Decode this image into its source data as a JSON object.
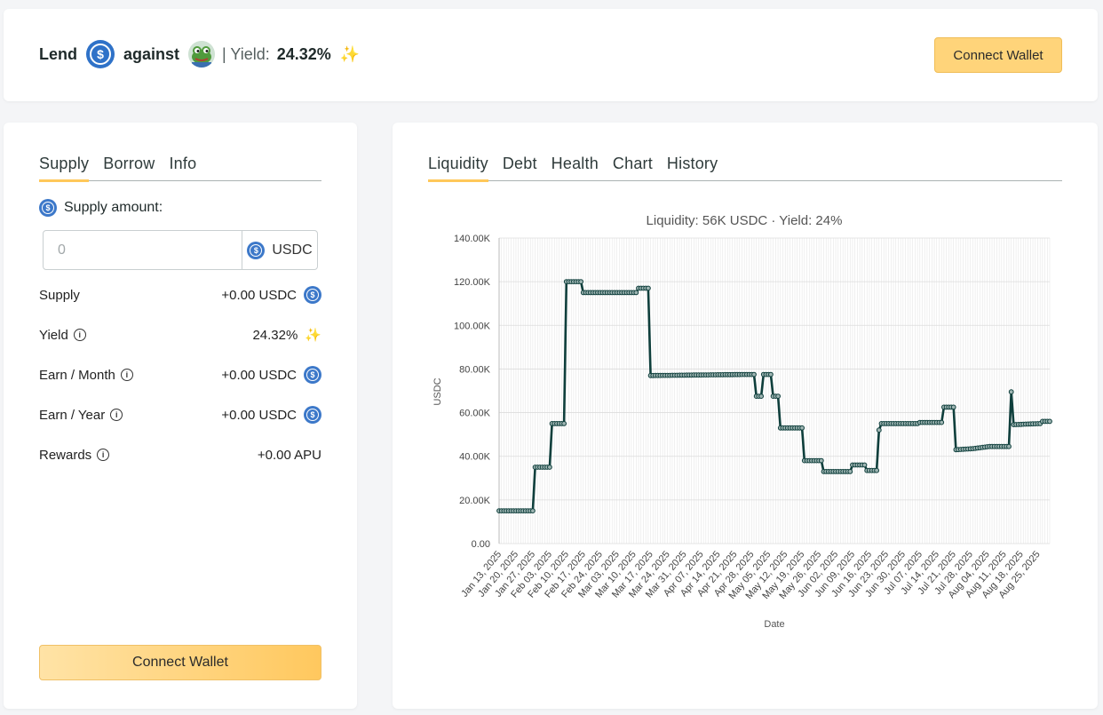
{
  "header": {
    "lend_label": "Lend",
    "against_label": "against",
    "yield_label": "| Yield:",
    "yield_value": "24.32%",
    "sparkle": "✨",
    "lend_icon": "usdc-coin-icon",
    "collateral_icon": "pepe-frog-icon",
    "connect_wallet": "Connect Wallet"
  },
  "left_panel": {
    "tabs": [
      {
        "label": "Supply",
        "active": true
      },
      {
        "label": "Borrow",
        "active": false
      },
      {
        "label": "Info",
        "active": false
      }
    ],
    "supply_amount_label": "Supply amount:",
    "input_placeholder": "0",
    "input_unit": "USDC",
    "stats": [
      {
        "label": "Supply",
        "value": "+0.00 USDC",
        "info": false,
        "icon": "usdc-coin-icon"
      },
      {
        "label": "Yield",
        "value": "24.32%",
        "info": true,
        "icon": "sparkle-icon"
      },
      {
        "label": "Earn / Month",
        "value": "+0.00 USDC",
        "info": true,
        "icon": "usdc-coin-icon"
      },
      {
        "label": "Earn / Year",
        "value": "+0.00 USDC",
        "info": true,
        "icon": "usdc-coin-icon"
      },
      {
        "label": "Rewards",
        "value": "+0.00 APU",
        "info": true,
        "icon": ""
      }
    ],
    "connect_wallet": "Connect Wallet"
  },
  "right_panel": {
    "tabs": [
      {
        "label": "Liquidity",
        "active": true
      },
      {
        "label": "Debt",
        "active": false
      },
      {
        "label": "Health",
        "active": false
      },
      {
        "label": "Chart",
        "active": false
      },
      {
        "label": "History",
        "active": false
      }
    ]
  },
  "colors": {
    "accent": "#ffc85a",
    "line": "#0f3f3c",
    "usdc": "#2f72c8"
  },
  "chart_data": {
    "type": "line",
    "title": "Liquidity: 56K USDC · Yield: 24%",
    "xlabel": "Date",
    "ylabel": "USDC",
    "ylim": [
      0,
      140000
    ],
    "yticks": [
      "0.00",
      "20.00K",
      "40.00K",
      "60.00K",
      "80.00K",
      "100.00K",
      "120.00K",
      "140.00K"
    ],
    "xtick_labels": [
      "Jan 13, 2025",
      "Jan 20, 2025",
      "Jan 27, 2025",
      "Feb 03, 2025",
      "Feb 10, 2025",
      "Feb 17, 2025",
      "Feb 24, 2025",
      "Mar 03, 2025",
      "Mar 10, 2025",
      "Mar 17, 2025",
      "Mar 24, 2025",
      "Mar 31, 2025",
      "Apr 07, 2025",
      "Apr 14, 2025",
      "Apr 21, 2025",
      "Apr 28, 2025",
      "May 05, 2025",
      "May 12, 2025",
      "May 19, 2025",
      "May 26, 2025",
      "Jun 02, 2025",
      "Jun 09, 2025",
      "Jun 16, 2025",
      "Jun 23, 2025",
      "Jun 30, 2025",
      "Jul 07, 2025",
      "Jul 14, 2025",
      "Jul 21, 2025",
      "Jul 28, 2025",
      "Aug 04, 2025",
      "Aug 11, 2025",
      "Aug 18, 2025",
      "Aug 25, 2025"
    ],
    "x_start": "2025-01-13",
    "x_end": "2025-08-30",
    "grid": true,
    "series": [
      {
        "name": "",
        "points": [
          [
            "2025-01-13",
            15000
          ],
          [
            "2025-01-27",
            15000
          ],
          [
            "2025-01-28",
            35000
          ],
          [
            "2025-02-03",
            35000
          ],
          [
            "2025-02-04",
            55000
          ],
          [
            "2025-02-09",
            55000
          ],
          [
            "2025-02-10",
            120000
          ],
          [
            "2025-02-16",
            120000
          ],
          [
            "2025-02-17",
            115000
          ],
          [
            "2025-03-11",
            115000
          ],
          [
            "2025-03-12",
            117000
          ],
          [
            "2025-03-16",
            117000
          ],
          [
            "2025-03-17",
            77000
          ],
          [
            "2025-04-26",
            77500
          ],
          [
            "2025-04-29",
            77500
          ],
          [
            "2025-04-30",
            67500
          ],
          [
            "2025-05-02",
            67500
          ],
          [
            "2025-05-03",
            77500
          ],
          [
            "2025-05-06",
            77500
          ],
          [
            "2025-05-07",
            67500
          ],
          [
            "2025-05-09",
            67500
          ],
          [
            "2025-05-10",
            53000
          ],
          [
            "2025-05-19",
            53000
          ],
          [
            "2025-05-20",
            38000
          ],
          [
            "2025-05-27",
            38000
          ],
          [
            "2025-05-28",
            33000
          ],
          [
            "2025-06-08",
            33000
          ],
          [
            "2025-06-09",
            36000
          ],
          [
            "2025-06-14",
            36000
          ],
          [
            "2025-06-15",
            33500
          ],
          [
            "2025-06-19",
            33500
          ],
          [
            "2025-06-20",
            52000
          ],
          [
            "2025-06-21",
            55000
          ],
          [
            "2025-07-06",
            55000
          ],
          [
            "2025-07-07",
            55500
          ],
          [
            "2025-07-16",
            55500
          ],
          [
            "2025-07-17",
            62500
          ],
          [
            "2025-07-21",
            62500
          ],
          [
            "2025-07-22",
            43000
          ],
          [
            "2025-07-29",
            43500
          ],
          [
            "2025-08-05",
            44500
          ],
          [
            "2025-08-13",
            44500
          ],
          [
            "2025-08-14",
            69500
          ],
          [
            "2025-08-15",
            54500
          ],
          [
            "2025-08-26",
            55000
          ],
          [
            "2025-08-27",
            56000
          ],
          [
            "2025-08-30",
            56000
          ]
        ]
      }
    ]
  }
}
